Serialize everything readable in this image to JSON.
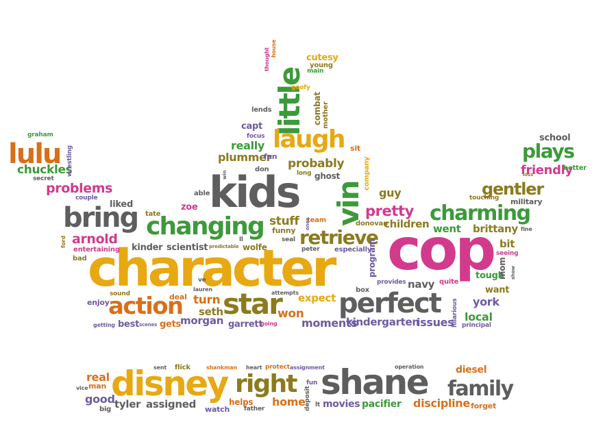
{
  "colors": {
    "orange": "#d8701a",
    "gold": "#e8a812",
    "pink": "#d23a8c",
    "green": "#3c9a3a",
    "gray": "#5e5e5e",
    "purple": "#6e5aa0",
    "olive": "#8c7a1e",
    "brown": "#9a6a2a"
  },
  "words": [
    {
      "text": "character",
      "color": "gold"
    },
    {
      "text": "cop",
      "color": "pink"
    },
    {
      "text": "kids",
      "color": "gray"
    },
    {
      "text": "disney",
      "color": "gold"
    },
    {
      "text": "shane",
      "color": "gray"
    },
    {
      "text": "perfect",
      "color": "gray"
    },
    {
      "text": "star",
      "color": "olive"
    },
    {
      "text": "action",
      "color": "orange"
    },
    {
      "text": "changing",
      "color": "green"
    },
    {
      "text": "bring",
      "color": "gray"
    },
    {
      "text": "little",
      "color": "green"
    },
    {
      "text": "laugh",
      "color": "gold"
    },
    {
      "text": "vin",
      "color": "green"
    },
    {
      "text": "lulu",
      "color": "orange"
    },
    {
      "text": "retrieve",
      "color": "olive"
    },
    {
      "text": "right",
      "color": "olive"
    },
    {
      "text": "family",
      "color": "gray"
    },
    {
      "text": "charming",
      "color": "green"
    },
    {
      "text": "plays",
      "color": "green"
    },
    {
      "text": "gentler",
      "color": "olive"
    },
    {
      "text": "problems",
      "color": "pink"
    },
    {
      "text": "chuckles",
      "color": "green"
    },
    {
      "text": "arnold",
      "color": "pink"
    },
    {
      "text": "pretty",
      "color": "pink"
    },
    {
      "text": "friendly",
      "color": "pink"
    },
    {
      "text": "probably",
      "color": "olive"
    },
    {
      "text": "plummer",
      "color": "olive"
    },
    {
      "text": "really",
      "color": "green"
    },
    {
      "text": "stuff",
      "color": "olive"
    },
    {
      "text": "children",
      "color": "olive"
    },
    {
      "text": "went",
      "color": "green"
    },
    {
      "text": "brittany",
      "color": "olive"
    },
    {
      "text": "moments",
      "color": "purple"
    },
    {
      "text": "kindergarten",
      "color": "purple"
    },
    {
      "text": "issues",
      "color": "purple"
    },
    {
      "text": "local",
      "color": "green"
    },
    {
      "text": "york",
      "color": "purple"
    },
    {
      "text": "tough",
      "color": "green"
    },
    {
      "text": "want",
      "color": "olive"
    },
    {
      "text": "navy",
      "color": "gray"
    },
    {
      "text": "expect",
      "color": "gold"
    },
    {
      "text": "won",
      "color": "orange"
    },
    {
      "text": "turn",
      "color": "orange"
    },
    {
      "text": "seth",
      "color": "olive"
    },
    {
      "text": "morgan",
      "color": "purple"
    },
    {
      "text": "garrett",
      "color": "purple"
    },
    {
      "text": "best",
      "color": "purple"
    },
    {
      "text": "gets",
      "color": "orange"
    },
    {
      "text": "enjoy",
      "color": "purple"
    },
    {
      "text": "deal",
      "color": "orange"
    },
    {
      "text": "sound",
      "color": "olive"
    },
    {
      "text": "scientist",
      "color": "gray"
    },
    {
      "text": "kinder",
      "color": "gray"
    },
    {
      "text": "wolfe",
      "color": "olive"
    },
    {
      "text": "entertaining",
      "color": "pink"
    },
    {
      "text": "bad",
      "color": "olive"
    },
    {
      "text": "liked",
      "color": "gray"
    },
    {
      "text": "zoe",
      "color": "pink"
    },
    {
      "text": "tate",
      "color": "olive"
    },
    {
      "text": "able",
      "color": "gray"
    },
    {
      "text": "couple",
      "color": "purple"
    },
    {
      "text": "secret",
      "color": "gray"
    },
    {
      "text": "graham",
      "color": "green"
    },
    {
      "text": "capt",
      "color": "purple"
    },
    {
      "text": "focus",
      "color": "purple"
    },
    {
      "text": "lends",
      "color": "gray"
    },
    {
      "text": "don",
      "color": "gray"
    },
    {
      "text": "fan",
      "color": "purple"
    },
    {
      "text": "long",
      "color": "olive"
    },
    {
      "text": "ghost",
      "color": "gray"
    },
    {
      "text": "sit",
      "color": "orange"
    },
    {
      "text": "guy",
      "color": "olive"
    },
    {
      "text": "donovan",
      "color": "olive"
    },
    {
      "text": "team",
      "color": "orange"
    },
    {
      "text": "funny",
      "color": "olive"
    },
    {
      "text": "seal",
      "color": "gray"
    },
    {
      "text": "peter",
      "color": "gray"
    },
    {
      "text": "especially",
      "color": "purple"
    },
    {
      "text": "cutesy",
      "color": "gold"
    },
    {
      "text": "young",
      "color": "olive"
    },
    {
      "text": "main",
      "color": "green"
    },
    {
      "text": "goofy",
      "color": "gold"
    },
    {
      "text": "school",
      "color": "gray"
    },
    {
      "text": "better",
      "color": "green"
    },
    {
      "text": "loss",
      "color": "olive"
    },
    {
      "text": "touching",
      "color": "olive"
    },
    {
      "text": "military",
      "color": "gray"
    },
    {
      "text": "fine",
      "color": "gray"
    },
    {
      "text": "bit",
      "color": "olive"
    },
    {
      "text": "seeing",
      "color": "pink"
    },
    {
      "text": "provides",
      "color": "purple"
    },
    {
      "text": "quite",
      "color": "pink"
    },
    {
      "text": "box",
      "color": "gray"
    },
    {
      "text": "attempts",
      "color": "gray"
    },
    {
      "text": "ve",
      "color": "gray"
    },
    {
      "text": "lauren",
      "color": "gray"
    },
    {
      "text": "going",
      "color": "pink"
    },
    {
      "text": "scenes",
      "color": "purple"
    },
    {
      "text": "getting",
      "color": "purple"
    },
    {
      "text": "principal",
      "color": "purple"
    },
    {
      "text": "predictable",
      "color": "olive"
    },
    {
      "text": "ll",
      "color": "gray"
    },
    {
      "text": "real",
      "color": "orange"
    },
    {
      "text": "man",
      "color": "orange"
    },
    {
      "text": "vice",
      "color": "gray"
    },
    {
      "text": "good",
      "color": "purple"
    },
    {
      "text": "big",
      "color": "gray"
    },
    {
      "text": "tyler",
      "color": "gray"
    },
    {
      "text": "assigned",
      "color": "gray"
    },
    {
      "text": "sent",
      "color": "gray"
    },
    {
      "text": "flick",
      "color": "olive"
    },
    {
      "text": "shankman",
      "color": "orange"
    },
    {
      "text": "heart",
      "color": "gray"
    },
    {
      "text": "protect",
      "color": "orange"
    },
    {
      "text": "assignment",
      "color": "purple"
    },
    {
      "text": "helps",
      "color": "orange"
    },
    {
      "text": "watch",
      "color": "purple"
    },
    {
      "text": "father",
      "color": "gray"
    },
    {
      "text": "home",
      "color": "orange"
    },
    {
      "text": "fun",
      "color": "purple"
    },
    {
      "text": "movies",
      "color": "purple"
    },
    {
      "text": "pacifier",
      "color": "green"
    },
    {
      "text": "discipline",
      "color": "orange"
    },
    {
      "text": "forget",
      "color": "orange"
    },
    {
      "text": "diesel",
      "color": "orange"
    },
    {
      "text": "operation",
      "color": "gray"
    },
    {
      "text": "deposit",
      "color": "gray"
    },
    {
      "text": "lt",
      "color": "gray"
    },
    {
      "text": "wrestling",
      "color": "purple"
    },
    {
      "text": "ford",
      "color": "olive"
    },
    {
      "text": "thought",
      "color": "pink"
    },
    {
      "text": "house",
      "color": "orange"
    },
    {
      "text": "combat",
      "color": "olive"
    },
    {
      "text": "mother",
      "color": "olive"
    },
    {
      "text": "company",
      "color": "gold"
    },
    {
      "text": "program",
      "color": "purple"
    },
    {
      "text": "mom",
      "color": "gray"
    },
    {
      "text": "hilarious",
      "color": "purple"
    },
    {
      "text": "win",
      "color": "gray"
    },
    {
      "text": "ones",
      "color": "purple"
    },
    {
      "text": "show",
      "color": "gray"
    }
  ]
}
